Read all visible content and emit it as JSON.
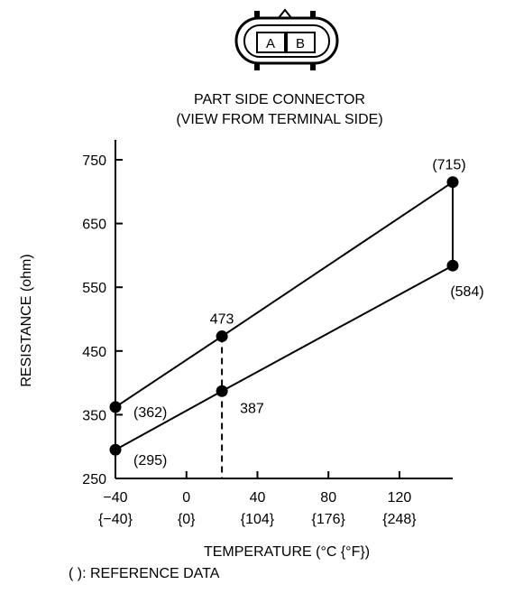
{
  "connector": {
    "pins": [
      "A",
      "B"
    ],
    "caption_line1": "PART SIDE CONNECTOR",
    "caption_line2": "(VIEW FROM TERMINAL SIDE)"
  },
  "chart_data": {
    "type": "line",
    "ylabel": "RESISTANCE (ohm)",
    "xlabel": "TEMPERATURE (°C {°F})",
    "footnote": "(   ): REFERENCE DATA",
    "ylim": [
      250,
      780
    ],
    "xlim": [
      -40,
      155
    ],
    "yticks": [
      250,
      350,
      450,
      550,
      650,
      750
    ],
    "xticks": [
      {
        "c": "−40",
        "f": "{−40}",
        "value": -40
      },
      {
        "c": "0",
        "f": "{0}",
        "value": 0
      },
      {
        "c": "40",
        "f": "{104}",
        "value": 40
      },
      {
        "c": "80",
        "f": "{176}",
        "value": 80
      },
      {
        "c": "120",
        "f": "{248}",
        "value": 120
      }
    ],
    "series": [
      {
        "points": [
          {
            "x": -40,
            "y": 362
          },
          {
            "x": 20,
            "y": 473
          },
          {
            "x": 150,
            "y": 715
          }
        ]
      },
      {
        "points": [
          {
            "x": -40,
            "y": 295
          },
          {
            "x": 20,
            "y": 387
          },
          {
            "x": 150,
            "y": 584
          }
        ]
      }
    ],
    "point_labels": [
      {
        "text": "(715)",
        "x": 150,
        "y": 715,
        "pos": "above"
      },
      {
        "text": "(584)",
        "x": 150,
        "y": 584,
        "pos": "below"
      },
      {
        "text": "473",
        "x": 20,
        "y": 473,
        "pos": "above"
      },
      {
        "text": "387",
        "x": 20,
        "y": 387,
        "pos": "right"
      },
      {
        "text": "(362)",
        "x": -40,
        "y": 362,
        "pos": "right"
      },
      {
        "text": "(295)",
        "x": -40,
        "y": 295,
        "pos": "below-right"
      }
    ],
    "connector_lines": [
      {
        "style": "solid",
        "x1": 150,
        "y1": 715,
        "x2": 150,
        "y2": 584
      },
      {
        "style": "dashed",
        "x1": 20,
        "y1": 473,
        "x2": 20,
        "y2": 250
      }
    ]
  }
}
